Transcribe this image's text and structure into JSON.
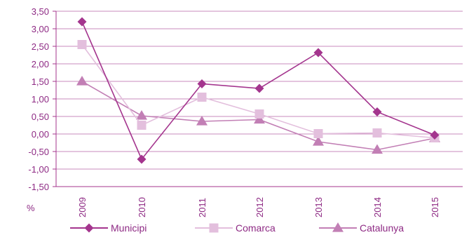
{
  "chart_data": {
    "type": "line",
    "title": "",
    "xlabel": "",
    "ylabel": "%",
    "categories": [
      "2009",
      "2010",
      "2011",
      "2012",
      "2013",
      "2014",
      "2015"
    ],
    "ylim": [
      -1.5,
      3.5
    ],
    "ytick_labels": [
      "3,50",
      "3,00",
      "2,50",
      "2,00",
      "1,50",
      "1,00",
      "0,50",
      "0,00",
      "-0,50",
      "-1,00",
      "-1,50"
    ],
    "ytick_values": [
      3.5,
      3.0,
      2.5,
      2.0,
      1.5,
      1.0,
      0.5,
      0.0,
      -0.5,
      -1.0,
      -1.5
    ],
    "grid": true,
    "legend_position": "bottom",
    "series": [
      {
        "name": "Municipi",
        "marker": "diamond",
        "color": "#a4358e",
        "values": [
          3.2,
          -0.72,
          1.43,
          1.3,
          2.32,
          0.63,
          -0.03
        ]
      },
      {
        "name": "Comarca",
        "marker": "square",
        "color": "#e3bfdd",
        "values": [
          2.55,
          0.25,
          1.05,
          0.57,
          0.01,
          0.03,
          -0.11
        ]
      },
      {
        "name": "Catalunya",
        "marker": "triangle",
        "color": "#c27fb5",
        "values": [
          1.5,
          0.52,
          0.36,
          0.41,
          -0.22,
          -0.45,
          -0.12
        ]
      }
    ],
    "axis_color": "#a4358e",
    "grid_color": "#c98bbd"
  }
}
